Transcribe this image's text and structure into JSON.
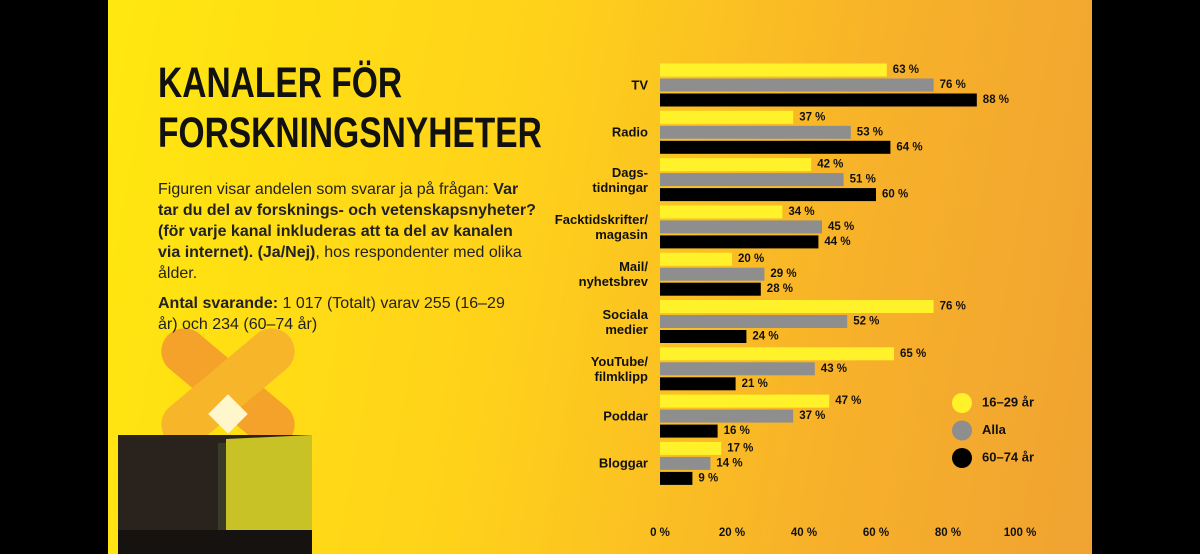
{
  "slide": {
    "title": [
      "KANALER FÖR",
      "FORSKNINGSNYHETER"
    ],
    "description": [
      "Figuren visar andelen som svarar ja på frågan: ",
      "Var tar du del av forsknings- och vetenskapsnyheter? (för varje kanal inkluderas att ta del av kanalen via internet). (Ja/Nej)",
      ", hos respondenter med olika ålder."
    ],
    "respondents": [
      "Antal svarande:",
      " 1 017 (Totalt) varav 255 (16–29 år) och 234 (60–74 år)"
    ]
  },
  "chart_data": {
    "type": "hbar",
    "categories": [
      "TV",
      "Radio",
      "Dags-\ntidningar",
      "Facktidskrifter/\nmagasin",
      "Mail/\nnyhetsbrev",
      "Sociala\nmedier",
      "YouTube/\nfilmklipp",
      "Poddar",
      "Bloggar"
    ],
    "series": [
      {
        "name": "16–29 år",
        "color": "#fff12a",
        "values": [
          63,
          37,
          42,
          34,
          20,
          76,
          65,
          47,
          17
        ],
        "value_labels": [
          "63 %",
          "37 %",
          "42 %",
          "34 %",
          "20 %",
          "76 %",
          "65 %",
          "47 %",
          "17 %"
        ]
      },
      {
        "name": "Alla",
        "color": "#8e8e8e",
        "values": [
          76,
          53,
          51,
          45,
          29,
          52,
          43,
          37,
          14
        ],
        "value_labels": [
          "76 %",
          "53 %",
          "51 %",
          "45 %",
          "29 %",
          "52 %",
          "43 %",
          "37 %",
          "14 %"
        ]
      },
      {
        "name": "60–74 år",
        "color": "#000000",
        "values": [
          88,
          64,
          60,
          44,
          28,
          24,
          21,
          16,
          9
        ],
        "value_labels": [
          "88 %",
          "64 %",
          "60 %",
          "44 %",
          "28 %",
          "24 %",
          "21 %",
          "16 %",
          "9 %"
        ]
      }
    ],
    "xlim": [
      0,
      100
    ],
    "xticks": [
      {
        "value": 0,
        "label": "0 %"
      },
      {
        "value": 20,
        "label": "20 %"
      },
      {
        "value": 40,
        "label": "40 %"
      },
      {
        "value": 60,
        "label": "60 %"
      },
      {
        "value": 80,
        "label": "80 %"
      },
      {
        "value": 100,
        "label": "100 %"
      }
    ],
    "legend": "right"
  }
}
